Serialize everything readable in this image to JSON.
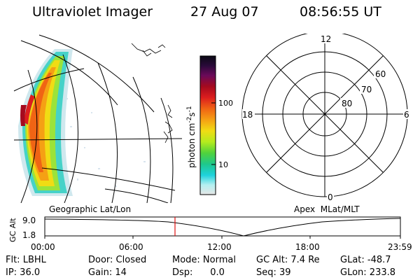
{
  "header": {
    "title": "Ultraviolet Imager",
    "date": "27 Aug 07",
    "time": "08:56:55 UT"
  },
  "colorbar": {
    "label": "photon cm",
    "label_sup": "-2",
    "label_mid": "s",
    "label_sup2": "-1",
    "ticks": [
      "100",
      "10"
    ],
    "colors": [
      "#0a0a14",
      "#2a0a3a",
      "#6a0a5a",
      "#a50a1e",
      "#dc1e1e",
      "#f06414",
      "#f5a014",
      "#f0dc14",
      "#b4eb1e",
      "#50d23c",
      "#1ec88c",
      "#1ed2dc",
      "#b4f0f0",
      "#e6e6e6"
    ]
  },
  "polar_plot": {
    "clock_labels": [
      "12",
      "18",
      "6",
      "0"
    ],
    "lat_labels": [
      "60",
      "70",
      "80"
    ]
  },
  "timeline": {
    "left_title": "Geographic Lat/Lon",
    "right_title": "Apex  MLat/MLT",
    "ylabel": "GC Alt",
    "yticks": [
      "9.0",
      "1.8"
    ],
    "xticks": [
      "00:00",
      "06:00",
      "12:00",
      "18:00",
      "23:59"
    ],
    "marker_time": "08:56:55"
  },
  "status": {
    "flt": "Flt: LBHL",
    "door": "Door: Closed",
    "mode": "Mode: Normal",
    "gcalt": "GC Alt: 7.4 Re",
    "glat": "GLat: -48.7",
    "ip": "IP: 36.0",
    "gain": "Gain: 14",
    "dsp": "Dsp:      0.0",
    "seq": "Seq: 39",
    "glon": "GLon: 233.8"
  }
}
